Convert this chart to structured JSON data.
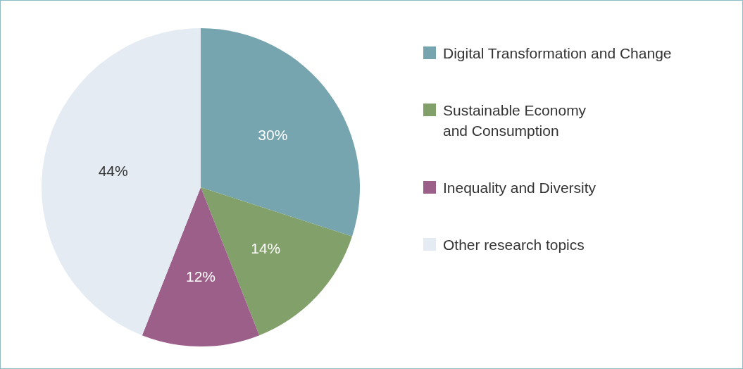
{
  "chart_data": {
    "type": "pie",
    "categories": [
      "Digital Transformation and Change",
      "Sustainable Economy\nand Consumption",
      "Inequality and Diversity",
      "Other research topics"
    ],
    "values": [
      30,
      14,
      12,
      44
    ],
    "value_labels": [
      "30%",
      "14%",
      "12%",
      "44%"
    ],
    "colors": [
      "#76a5b0",
      "#82a06a",
      "#9c5f8a",
      "#e4ebf2"
    ],
    "legend": "right"
  }
}
